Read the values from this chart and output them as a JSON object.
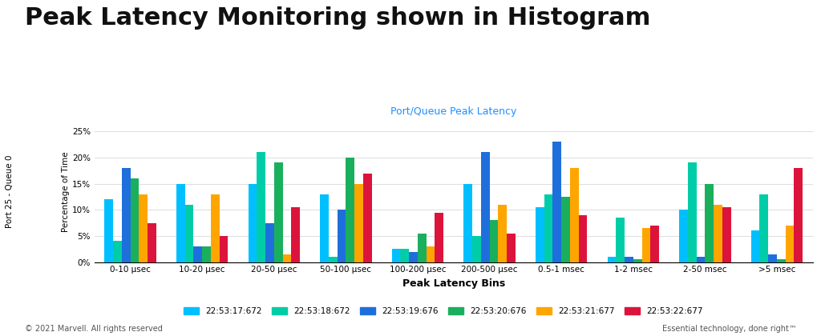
{
  "title": "Peak Latency Monitoring shown in Histogram",
  "subtitle": "Port/Queue Peak Latency",
  "xlabel": "Peak Latency Bins",
  "ylabel_top": "Port 25 - Queue 0",
  "ylabel_bottom": "Percentage of Time",
  "categories": [
    "0-10 μsec",
    "10-20 μsec",
    "20-50 μsec",
    "50-100 μsec",
    "100-200 μsec",
    "200-500 μsec",
    "0.5-1 msec",
    "1-2 msec",
    "2-50 msec",
    ">5 msec"
  ],
  "series": [
    {
      "label": "22:53:17:672",
      "color": "#00BFFF",
      "values": [
        12,
        15,
        15,
        13,
        2.5,
        15,
        10.5,
        1,
        10,
        6
      ]
    },
    {
      "label": "22:53:18:672",
      "color": "#00CDA8",
      "values": [
        4,
        11,
        21,
        1,
        2.5,
        5,
        13,
        8.5,
        19,
        13
      ]
    },
    {
      "label": "22:53:19:676",
      "color": "#1E6FDC",
      "values": [
        18,
        3,
        7.5,
        10,
        2,
        21,
        23,
        1,
        1,
        1.5
      ]
    },
    {
      "label": "22:53:20:676",
      "color": "#1AAF5D",
      "values": [
        16,
        3,
        19,
        20,
        5.5,
        8,
        12.5,
        0.5,
        15,
        0.5
      ]
    },
    {
      "label": "22:53:21:677",
      "color": "#FFA500",
      "values": [
        13,
        13,
        1.5,
        15,
        3,
        11,
        18,
        6.5,
        11,
        7
      ]
    },
    {
      "label": "22:53:22:677",
      "color": "#DC143C",
      "values": [
        7.5,
        5,
        10.5,
        17,
        9.5,
        5.5,
        9,
        7,
        10.5,
        18
      ]
    }
  ],
  "ylim": [
    0,
    27
  ],
  "yticks": [
    0,
    5,
    10,
    15,
    20,
    25
  ],
  "ytick_labels": [
    "0%",
    "5%",
    "10%",
    "15%",
    "20%",
    "25%"
  ],
  "background_color": "#ffffff",
  "grid_color": "#dddddd",
  "title_fontsize": 22,
  "subtitle_color": "#1E90FF",
  "footer_left": "© 2021 Marvell. All rights reserved",
  "footer_right": "Essential technology, done right™"
}
